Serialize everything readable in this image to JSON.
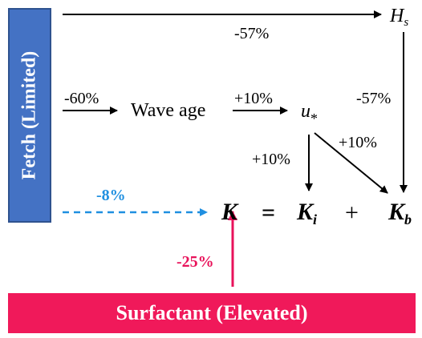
{
  "fetch": {
    "label": "Fetch (Limited)"
  },
  "surfactant": {
    "label": "Surfactant (Elevated)"
  },
  "nodes": {
    "hs": "H",
    "hs_sub": "s",
    "wave_age": "Wave age",
    "ustar": "u",
    "ustar_sub": "*"
  },
  "equation": {
    "k": "K",
    "equals": "=",
    "ki": "K",
    "ki_sub": "i",
    "plus": "+",
    "kb": "K",
    "kb_sub": "b"
  },
  "effects": {
    "fetch_to_hs": "-57%",
    "fetch_to_wave_age": "-60%",
    "wave_age_to_ustar": "+10%",
    "hs_to_kb": "-57%",
    "ustar_to_ki": "+10%",
    "ustar_to_kb": "+10%",
    "fetch_to_k": "-8%",
    "surfactant_to_k": "-25%"
  },
  "colors": {
    "fetch": "#4472c4",
    "surfactant": "#f0195a",
    "fetch_effect_text": "#1f8fe0",
    "surfactant_effect_text": "#e8125a"
  }
}
